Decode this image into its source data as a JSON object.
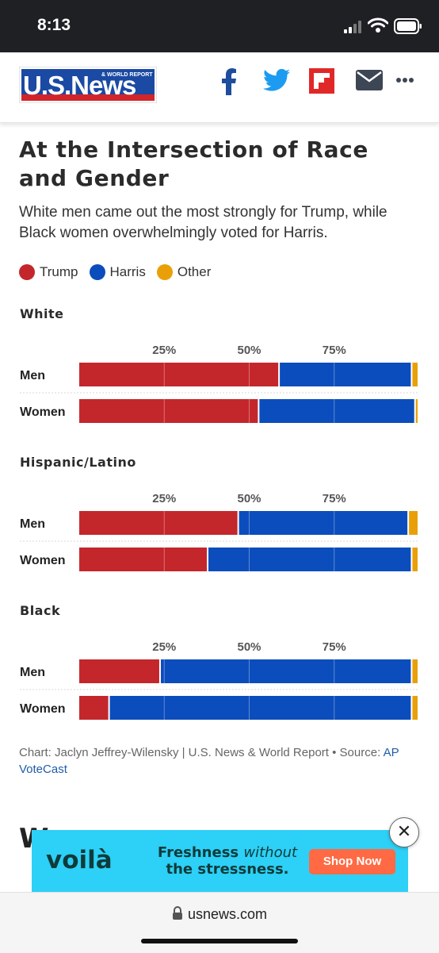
{
  "status_bar": {
    "time": "8:13"
  },
  "header": {
    "logo_text": "U.S.News",
    "logo_subtext": "& WORLD REPORT",
    "share_icons": [
      "facebook-icon",
      "twitter-icon",
      "flipboard-icon",
      "email-icon",
      "more-icon"
    ]
  },
  "article": {
    "title": "At the Intersection of Race and Gender",
    "subtitle": "White men came out the most strongly for Trump, while Black women overwhelmingly voted for Harris.",
    "below_heading_fragment": "W"
  },
  "legend": [
    {
      "label": "Trump",
      "color": "#c3272b"
    },
    {
      "label": "Harris",
      "color": "#0b4dbc"
    },
    {
      "label": "Other",
      "color": "#e9a008"
    }
  ],
  "chart_data": {
    "type": "bar",
    "stacked": true,
    "orientation": "horizontal",
    "tick_labels": [
      "25%",
      "50%",
      "75%"
    ],
    "xlim": [
      0,
      100
    ],
    "grid": true,
    "legend_position": "top-left",
    "series_names": [
      "Trump",
      "Harris",
      "Other"
    ],
    "groups": [
      {
        "title": "White",
        "rows": [
          {
            "label": "Men",
            "values": [
              59,
              39,
              2
            ]
          },
          {
            "label": "Women",
            "values": [
              53,
              46,
              1
            ]
          }
        ]
      },
      {
        "title": "Hispanic/Latino",
        "rows": [
          {
            "label": "Men",
            "values": [
              47,
              50,
              3
            ]
          },
          {
            "label": "Women",
            "values": [
              38,
              60,
              2
            ]
          }
        ]
      },
      {
        "title": "Black",
        "rows": [
          {
            "label": "Men",
            "values": [
              24,
              74,
              2
            ]
          },
          {
            "label": "Women",
            "values": [
              9,
              89,
              2
            ]
          }
        ]
      }
    ]
  },
  "credit": {
    "text": "Chart: Jaclyn Jeffrey-Wilensky | U.S. News & World Report • Source: ",
    "link": "AP VoteCast"
  },
  "ad": {
    "brand": "voilà",
    "tagline_a": "Freshness ",
    "tagline_em": "without",
    "tagline_b": "the stressness.",
    "button": "Shop Now",
    "close": "✕"
  },
  "browser": {
    "url": "usnews.com"
  }
}
